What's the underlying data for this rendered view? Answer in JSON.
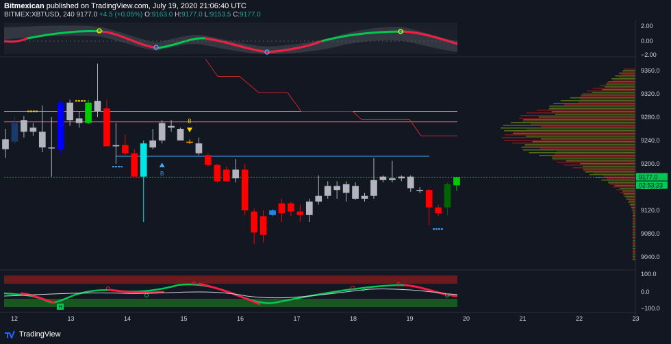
{
  "header": {
    "publisher": "Bitmexican",
    "published_text": "published on TradingView.com, July 19, 2020 21:06:40 UTC",
    "symbol": "BITMEX:XBTUSD, 240",
    "last": "9177.0",
    "change": "+4.5 (+0.05%)",
    "o_label": "O:",
    "o": "9163.0",
    "h_label": "H:",
    "h": "9177.0",
    "l_label": "L:",
    "l": "9153.5",
    "c_label": "C:",
    "c": "9177.0"
  },
  "footer": {
    "brand": "TradingView",
    "logo_icon": "tradingview-logo-icon"
  },
  "colors": {
    "bg": "#131722",
    "up": "#b2b5be",
    "down": "#ff0000",
    "accent_green": "#00e676"
  },
  "chart_data": [
    {
      "type": "candlestick",
      "title": "BITMEX:XBTUSD, 240",
      "x_ticks": [
        "12",
        "13",
        "14",
        "15",
        "16",
        "17",
        "18",
        "19",
        "20",
        "21",
        "22",
        "23"
      ],
      "y_ticks": [
        "9040.0",
        "9080.0",
        "9120.0",
        "9160.0",
        "9200.0",
        "9240.0",
        "9280.0",
        "9320.0",
        "9360.0"
      ],
      "ylim": [
        9020,
        9380
      ],
      "last_price_label": "9177.0",
      "countdown_label": "02:53:23",
      "candles": [
        {
          "o": 9225,
          "h": 9260,
          "l": 9210,
          "c": 9242,
          "color": "#b2b5be"
        },
        {
          "o": 9238,
          "h": 9280,
          "l": 9235,
          "c": 9270,
          "color": "#1a3a6a"
        },
        {
          "o": 9255,
          "h": 9282,
          "l": 9245,
          "c": 9275,
          "color": "#b2b5be"
        },
        {
          "o": 9262,
          "h": 9270,
          "l": 9248,
          "c": 9255,
          "color": "#b2b5be"
        },
        {
          "o": 9255,
          "h": 9300,
          "l": 9220,
          "c": 9228,
          "color": "#b2b5be"
        },
        {
          "o": 9228,
          "h": 9280,
          "l": 9178,
          "c": 9228,
          "color": "#b2b5be"
        },
        {
          "o": 9225,
          "h": 9310,
          "l": 9215,
          "c": 9305,
          "color": "#0000ff"
        },
        {
          "o": 9275,
          "h": 9310,
          "l": 9265,
          "c": 9305,
          "color": "#b2b5be"
        },
        {
          "o": 9270,
          "h": 9290,
          "l": 9262,
          "c": 9278,
          "color": "#b2b5be"
        },
        {
          "o": 9270,
          "h": 9310,
          "l": 9268,
          "c": 9305,
          "color": "#00cc00"
        },
        {
          "o": 9290,
          "h": 9372,
          "l": 9280,
          "c": 9308,
          "color": "#b2b5be"
        },
        {
          "o": 9295,
          "h": 9310,
          "l": 9230,
          "c": 9230,
          "color": "#ff0000"
        },
        {
          "o": 9230,
          "h": 9270,
          "l": 9200,
          "c": 9232,
          "color": "#b2b5be"
        },
        {
          "o": 9232,
          "h": 9250,
          "l": 9215,
          "c": 9218,
          "color": "#ff0000"
        },
        {
          "o": 9218,
          "h": 9225,
          "l": 9178,
          "c": 9178,
          "color": "#ff0000"
        },
        {
          "o": 9178,
          "h": 9240,
          "l": 9100,
          "c": 9235,
          "color": "#00e5e5"
        },
        {
          "o": 9228,
          "h": 9260,
          "l": 9225,
          "c": 9240,
          "color": "#b2b5be"
        },
        {
          "o": 9240,
          "h": 9275,
          "l": 9235,
          "c": 9270,
          "color": "#b2b5be"
        },
        {
          "o": 9262,
          "h": 9275,
          "l": 9255,
          "c": 9265,
          "color": "#b2b5be"
        },
        {
          "o": 9260,
          "h": 9262,
          "l": 9240,
          "c": 9240,
          "color": "#b2b5be"
        },
        {
          "o": 9238,
          "h": 9242,
          "l": 9234,
          "c": 9236,
          "color": "#ff9800"
        },
        {
          "o": 9235,
          "h": 9245,
          "l": 9215,
          "c": 9218,
          "color": "#b2b5be"
        },
        {
          "o": 9215,
          "h": 9218,
          "l": 9195,
          "c": 9198,
          "color": "#ff0000"
        },
        {
          "o": 9198,
          "h": 9200,
          "l": 9168,
          "c": 9170,
          "color": "#ff0000"
        },
        {
          "o": 9190,
          "h": 9195,
          "l": 9170,
          "c": 9170,
          "color": "#ff0000"
        },
        {
          "o": 9175,
          "h": 9208,
          "l": 9168,
          "c": 9190,
          "color": "#b2b5be"
        },
        {
          "o": 9190,
          "h": 9200,
          "l": 9112,
          "c": 9120,
          "color": "#ff0000"
        },
        {
          "o": 9118,
          "h": 9123,
          "l": 9062,
          "c": 9082,
          "color": "#ff0000"
        },
        {
          "o": 9110,
          "h": 9120,
          "l": 9065,
          "c": 9078,
          "color": "#ff0000"
        },
        {
          "o": 9112,
          "h": 9122,
          "l": 9110,
          "c": 9120,
          "color": "#1e88e5"
        },
        {
          "o": 9115,
          "h": 9140,
          "l": 9100,
          "c": 9132,
          "color": "#ff0000"
        },
        {
          "o": 9132,
          "h": 9135,
          "l": 9110,
          "c": 9118,
          "color": "#ff0000"
        },
        {
          "o": 9118,
          "h": 9130,
          "l": 9100,
          "c": 9112,
          "color": "#ff0000"
        },
        {
          "o": 9112,
          "h": 9140,
          "l": 9100,
          "c": 9135,
          "color": "#b2b5be"
        },
        {
          "o": 9135,
          "h": 9180,
          "l": 9130,
          "c": 9145,
          "color": "#b2b5be"
        },
        {
          "o": 9145,
          "h": 9170,
          "l": 9140,
          "c": 9162,
          "color": "#b2b5be"
        },
        {
          "o": 9162,
          "h": 9170,
          "l": 9140,
          "c": 9155,
          "color": "#b2b5be"
        },
        {
          "o": 9150,
          "h": 9170,
          "l": 9135,
          "c": 9165,
          "color": "#b2b5be"
        },
        {
          "o": 9162,
          "h": 9168,
          "l": 9138,
          "c": 9140,
          "color": "#b2b5be"
        },
        {
          "o": 9140,
          "h": 9150,
          "l": 9135,
          "c": 9145,
          "color": "#b2b5be"
        },
        {
          "o": 9145,
          "h": 9210,
          "l": 9140,
          "c": 9172,
          "color": "#b2b5be"
        },
        {
          "o": 9172,
          "h": 9180,
          "l": 9168,
          "c": 9178,
          "color": "#b2b5be"
        },
        {
          "o": 9172,
          "h": 9205,
          "l": 9168,
          "c": 9175,
          "color": "#b2b5be"
        },
        {
          "o": 9175,
          "h": 9180,
          "l": 9170,
          "c": 9178,
          "color": "#b2b5be"
        },
        {
          "o": 9178,
          "h": 9180,
          "l": 9152,
          "c": 9158,
          "color": "#b2b5be"
        },
        {
          "o": 9155,
          "h": 9160,
          "l": 9150,
          "c": 9153,
          "color": "#b2b5be"
        },
        {
          "o": 9155,
          "h": 9157,
          "l": 9095,
          "c": 9125,
          "color": "#ff0000"
        },
        {
          "o": 9125,
          "h": 9130,
          "l": 9110,
          "c": 9115,
          "color": "#ff0000"
        },
        {
          "o": 9125,
          "h": 9168,
          "l": 9112,
          "c": 9165,
          "color": "#006400"
        },
        {
          "o": 9163,
          "h": 9177,
          "l": 9153.5,
          "c": 9177,
          "color": "#00cc00"
        }
      ],
      "signals": {
        "buy_label": "B",
        "sell_label": "B"
      }
    },
    {
      "type": "line",
      "title": "",
      "y_ticks": [
        "2.00",
        "0.00",
        "−2.00"
      ],
      "ylim": [
        -2.2,
        2.2
      ]
    },
    {
      "type": "line",
      "title": "",
      "y_ticks": [
        "100.0",
        "0.0",
        "−100.0"
      ],
      "ylim": [
        -110,
        110
      ],
      "badge_label": "H"
    }
  ]
}
